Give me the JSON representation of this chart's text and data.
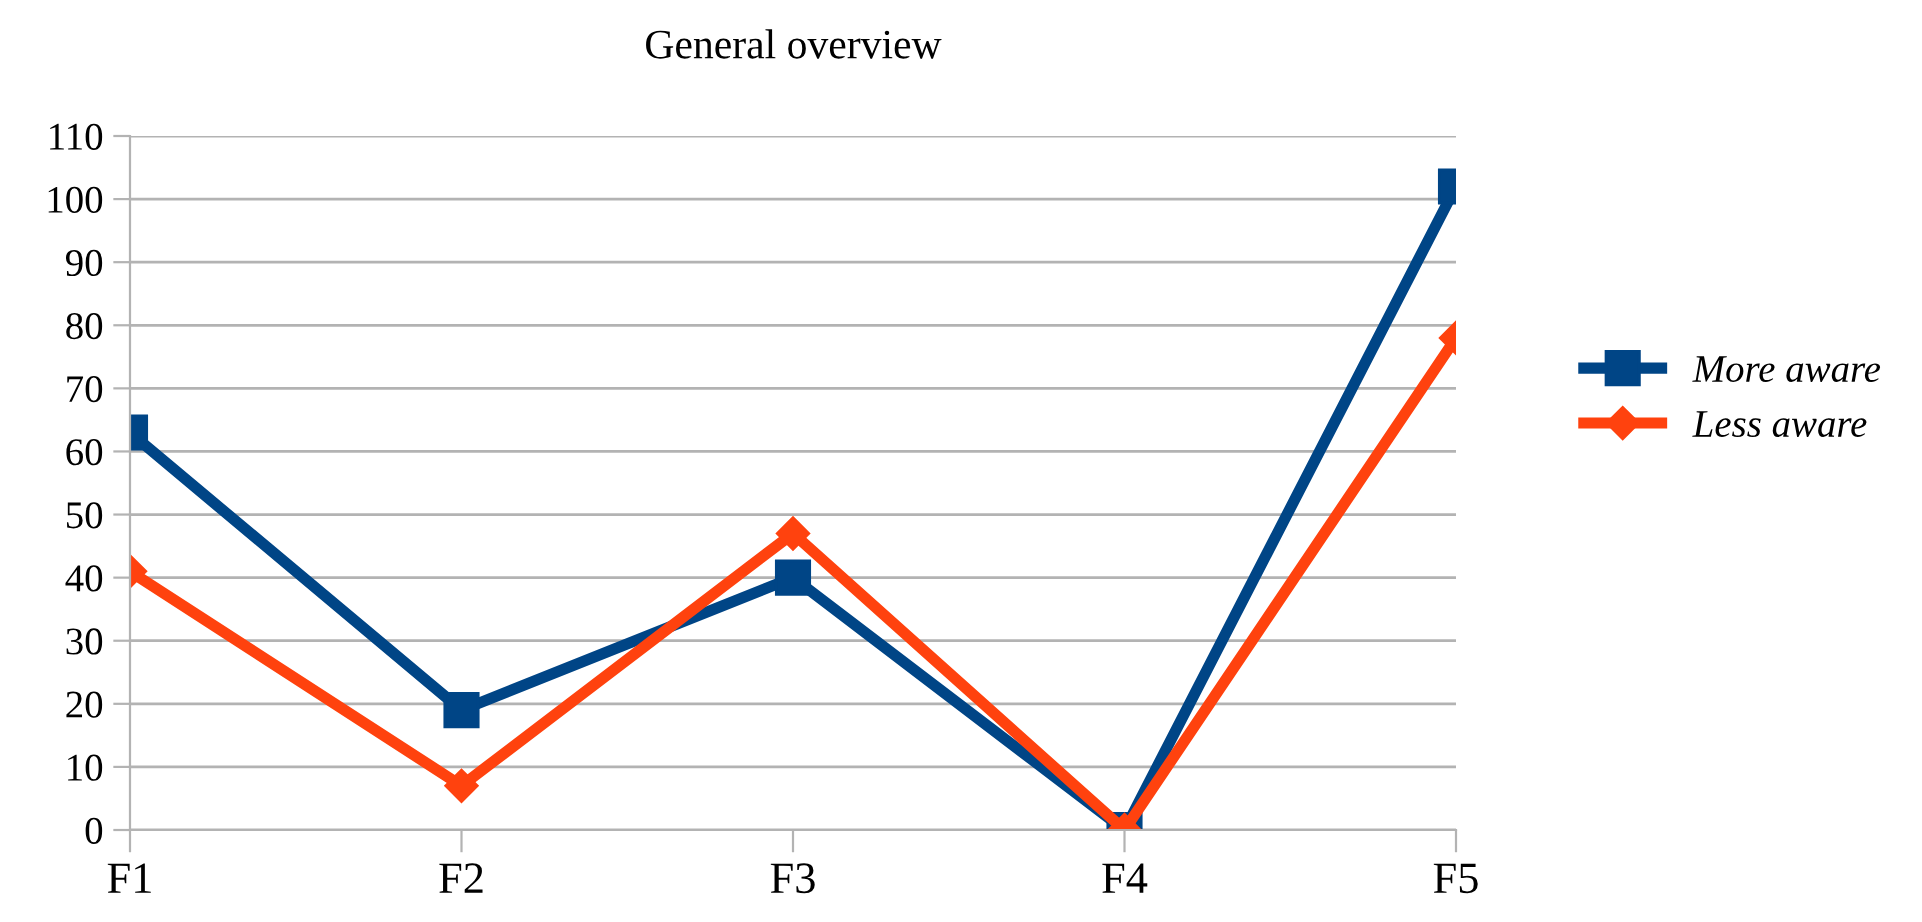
{
  "chart_data": {
    "type": "line",
    "title": "General overview",
    "categories": [
      "F1",
      "F2",
      "F3",
      "F4",
      "F5"
    ],
    "series": [
      {
        "name": "More aware",
        "color": "#004586",
        "values": [
          63,
          19,
          40,
          0,
          102
        ],
        "marker": "square"
      },
      {
        "name": "Less aware",
        "color": "#ff420e",
        "values": [
          41,
          7,
          47,
          0,
          78
        ],
        "marker": "diamond"
      }
    ],
    "ylim": [
      0,
      110
    ],
    "yticks": [
      0,
      10,
      20,
      30,
      40,
      50,
      60,
      70,
      80,
      90,
      100,
      110
    ],
    "grid": "y",
    "legend": "right"
  }
}
